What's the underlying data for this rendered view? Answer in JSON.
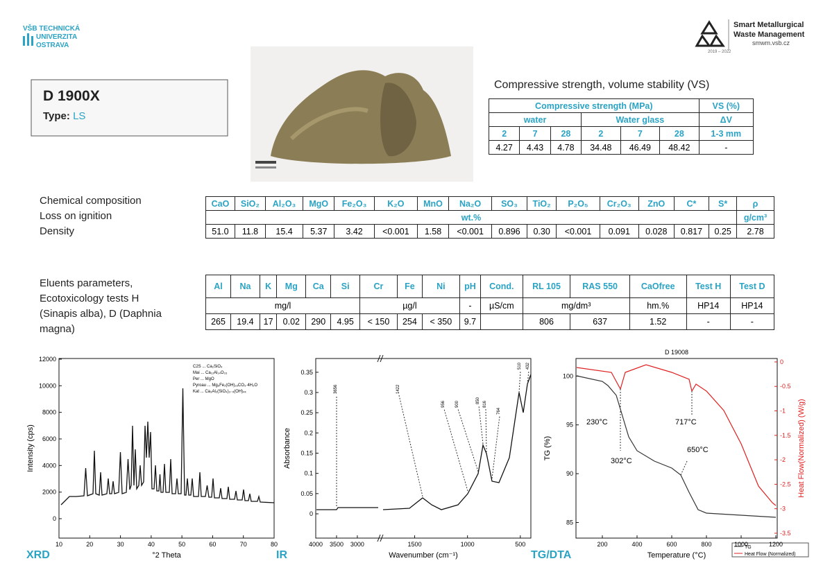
{
  "header": {
    "university": [
      "VŠB TECHNICKÁ",
      "UNIVERZITA",
      "OSTRAVA"
    ],
    "project": [
      "Smart Metallurgical",
      "Waste Management"
    ],
    "url": "smwm.vsb.cz",
    "years": "2019 – 2022"
  },
  "sample": {
    "name": "D 1900X",
    "type_label": "Type:",
    "type": "LS"
  },
  "strength": {
    "title": "Compressive strength, volume stability (VS)",
    "header1": [
      "Compressive strength (MPa)",
      "VS (%)"
    ],
    "header2": [
      "water",
      "Water glass",
      "ΔV"
    ],
    "header3": [
      "2",
      "7",
      "28",
      "2",
      "7",
      "28",
      "1-3 mm"
    ],
    "values": [
      "4.27",
      "4.43",
      "4.78",
      "34.48",
      "46.49",
      "48.42",
      "-"
    ]
  },
  "chemical": {
    "labels": [
      "Chemical composition",
      "Loss on ignition",
      "Density"
    ],
    "headers": [
      "CaO",
      "SiO₂",
      "Al₂O₃",
      "MgO",
      "Fe₂O₃",
      "K₂O",
      "MnO",
      "Na₂O",
      "SO₃",
      "TiO₂",
      "P₂O₅",
      "Cr₂O₃",
      "ZnO",
      "C*",
      "S*",
      "ρ"
    ],
    "units": [
      "wt.%",
      "g/cm³"
    ],
    "values": [
      "51.0",
      "11.8",
      "15.4",
      "5.37",
      "3.42",
      "<0.001",
      "1.58",
      "<0.001",
      "0.896",
      "0.30",
      "<0.001",
      "0.091",
      "0.028",
      "0.817",
      "0.25",
      "2.78"
    ]
  },
  "eluents": {
    "labels": [
      "Eluents parameters,",
      "Ecotoxicology tests H",
      "(Sinapis alba), D (Daphnia",
      "magna)"
    ],
    "headers": [
      "Al",
      "Na",
      "K",
      "Mg",
      "Ca",
      "Si",
      "Cr",
      "Fe",
      "Ni",
      "pH",
      "Cond.",
      "RL 105",
      "RAS 550",
      "CaOfree",
      "Test H",
      "Test D"
    ],
    "units": [
      "mg/l",
      "µg/l",
      "-",
      "µS/cm",
      "mg/dm³",
      "hm.%",
      "HP14",
      "HP14"
    ],
    "values": [
      "265",
      "19.4",
      "17",
      "0.02",
      "290",
      "4.95",
      "< 150",
      "254",
      "< 350",
      "9.7",
      null,
      "806",
      "637",
      "1.52",
      "-",
      "-"
    ]
  },
  "plots": {
    "xrd": {
      "label": "XRD",
      "xlabel": "°2 Theta",
      "ylabel": "Intensity (cps)",
      "xlim": [
        10,
        80
      ],
      "ylim": [
        -1460,
        12050
      ],
      "xticks": [
        10,
        20,
        30,
        40,
        50,
        60,
        70,
        80
      ],
      "yticks": [
        0,
        2000,
        4000,
        6000,
        8000,
        10000,
        12000
      ],
      "legend": [
        "C2S ... Ca₂SiO₄",
        "Mai ... Ca₁₂Al₁₄O₃₃",
        "Per ... MgO",
        "Pyroau ... Mg₆Fe₂(OH)₁₆CO₃·4H₂O",
        "Kat ... Ca₃Al₂(SiO₄)₃₋ₓ(OH)₄ₓ"
      ]
    },
    "ir": {
      "label": "IR",
      "xlabel": "Wavenumber (cm⁻¹)",
      "ylabel": "Absorbance",
      "xlim": [
        4000,
        400
      ],
      "xbreak": [
        2500,
        1800
      ],
      "ylim": [
        -0.06,
        0.384
      ],
      "xticks": [
        4000,
        3500,
        3000,
        1500,
        1000,
        500
      ],
      "yticks": [
        0,
        0.05,
        0.1,
        0.15,
        0.2,
        0.25,
        0.3,
        0.35
      ],
      "peaks": [
        "3656",
        "1422",
        "956",
        "900",
        "850",
        "816",
        "764",
        "510",
        "432"
      ]
    },
    "tg": {
      "label": "TG/DTA",
      "title": "D 19008",
      "xlabel": "Temperature (°C)",
      "ylabel": "TG (%)",
      "y2label": "Heat Flow(Normalized) (W/g)",
      "xlim": [
        48,
        1208
      ],
      "ylim": [
        83.4,
        101.8
      ],
      "y2lim": [
        -3.6,
        0.07
      ],
      "xticks": [
        200,
        400,
        600,
        800,
        1000,
        1200
      ],
      "yticks": [
        85,
        90,
        95,
        100
      ],
      "y2ticks": [
        0,
        -0.5,
        -1,
        -1.5,
        -2,
        -2.5,
        -3,
        -3.5
      ],
      "annotations": [
        "230°C",
        "302°C",
        "717°C",
        "650°C"
      ],
      "legend": [
        "TG",
        "Heat Flow (Normalized)"
      ]
    }
  }
}
